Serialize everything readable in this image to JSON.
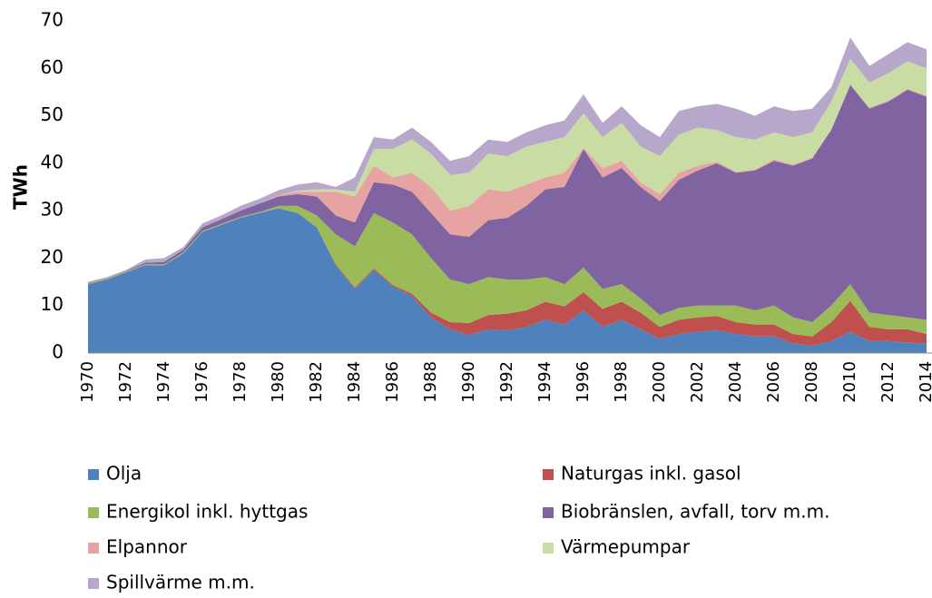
{
  "chart_data": {
    "type": "stacked_area",
    "y_label": "TWh",
    "categories": [
      "1970",
      null,
      "1972",
      null,
      "1974",
      null,
      "1976",
      null,
      "1978",
      null,
      "1980",
      null,
      "1982",
      null,
      "1984",
      null,
      "1986",
      null,
      "1988",
      null,
      "1990",
      null,
      "1992",
      null,
      "1994",
      null,
      "1996",
      null,
      "1998",
      null,
      "2000",
      null,
      "2002",
      null,
      "2004",
      null,
      "2006",
      null,
      "2008",
      null,
      "2010",
      null,
      "2012",
      null,
      "2014"
    ],
    "ylim": [
      0,
      70
    ],
    "yticks": [
      0,
      10,
      20,
      30,
      40,
      50,
      60,
      70
    ],
    "grid": false,
    "series": [
      {
        "name": "Olja",
        "color": "#4f81bd",
        "values": [
          14.5,
          15.5,
          17,
          18.5,
          18.5,
          21,
          25.5,
          27,
          28.5,
          29.5,
          30.5,
          29.5,
          26.5,
          18.5,
          13.5,
          17.5,
          14,
          12,
          7.5,
          5,
          3.8,
          5,
          4.8,
          5.5,
          7,
          6,
          9,
          5.5,
          7,
          5,
          3,
          4,
          4.5,
          4.8,
          4,
          3.5,
          3.5,
          2,
          1.5,
          2.5,
          4.5,
          2.5,
          2.5,
          2.2,
          2
        ]
      },
      {
        "name": "Naturgas inkl. gasol",
        "color": "#c0504d",
        "values": [
          0,
          0,
          0,
          0,
          0,
          0,
          0,
          0,
          0,
          0,
          0,
          0,
          0,
          0.2,
          0.3,
          0.3,
          0.3,
          0.5,
          1,
          1.5,
          2.5,
          3,
          3.5,
          3.5,
          3.8,
          3.8,
          3.8,
          3.8,
          3.8,
          3.5,
          2.5,
          3,
          3,
          3,
          2.5,
          2.5,
          2.5,
          2,
          2,
          4,
          6.5,
          3,
          2.5,
          2.8,
          2
        ]
      },
      {
        "name": "Energikol inkl. hyttgas",
        "color": "#9bbb59",
        "values": [
          0.2,
          0.2,
          0.2,
          0.2,
          0.2,
          0.2,
          0.2,
          0.2,
          0.2,
          0.2,
          0.5,
          1.5,
          2.5,
          6.3,
          8.7,
          11.7,
          13.2,
          12.5,
          11.5,
          9,
          8.2,
          8,
          7.2,
          6.5,
          5.2,
          4.7,
          5.2,
          4.2,
          3.7,
          3,
          2.5,
          2.5,
          2.5,
          2.2,
          3.5,
          3,
          4,
          3.5,
          3,
          3.5,
          3.5,
          3,
          3,
          2.5,
          3
        ]
      },
      {
        "name": "Biobränslen, avfall, torv m.m.",
        "color": "#8064a2",
        "values": [
          0.1,
          0.1,
          0.1,
          0.3,
          0.5,
          0.6,
          0.8,
          1,
          1.3,
          1.8,
          2,
          2.5,
          4,
          4,
          5,
          6.5,
          8,
          9,
          9.5,
          9.5,
          10,
          12,
          13,
          15.5,
          18.5,
          20.5,
          25,
          23.5,
          24.5,
          23.5,
          24,
          27,
          28.5,
          30,
          28,
          29.5,
          30.5,
          32,
          34.5,
          37,
          42,
          43,
          45,
          48,
          47
        ]
      },
      {
        "name": "Elpannor",
        "color": "#e6a3a1",
        "values": [
          0,
          0,
          0,
          0,
          0,
          0,
          0,
          0,
          0,
          0,
          0.3,
          0.5,
          1,
          5,
          5.5,
          3.5,
          1.5,
          4,
          5.5,
          5,
          6.5,
          6.5,
          5.5,
          4.5,
          2.5,
          3,
          0.2,
          2,
          1.5,
          1,
          1.5,
          1.5,
          1,
          0.3,
          0.2,
          0.2,
          0.3,
          0.2,
          0.2,
          0.2,
          0.2,
          0.2,
          0.2,
          0.2,
          0.2
        ]
      },
      {
        "name": "Värmepumpar",
        "color": "#c9dca4",
        "values": [
          0,
          0,
          0,
          0,
          0,
          0,
          0,
          0,
          0,
          0,
          0,
          0.2,
          0.5,
          0.5,
          1,
          3.5,
          6,
          7,
          7,
          7.5,
          7,
          7.5,
          7.5,
          8,
          7.5,
          7.5,
          7.3,
          6.5,
          8,
          7.5,
          8,
          8,
          8,
          6.7,
          7.3,
          6.3,
          5.7,
          5.8,
          5.3,
          5.8,
          5.3,
          5.3,
          5.8,
          5.8,
          5.8
        ]
      },
      {
        "name": "Spillvärme m.m.",
        "color": "#b7a7cb",
        "values": [
          0.2,
          0.2,
          0.2,
          0.7,
          0.8,
          0.5,
          0.8,
          0.8,
          1,
          1,
          1,
          1.3,
          1.5,
          0.5,
          3,
          2.5,
          2,
          2.5,
          2.5,
          3,
          3.5,
          3,
          3,
          3,
          3.5,
          3.5,
          4,
          3,
          3.5,
          4.5,
          4,
          5,
          4.5,
          5.5,
          6,
          5,
          5.5,
          5.5,
          5,
          3,
          4.5,
          3.5,
          4,
          4,
          4
        ]
      }
    ]
  }
}
